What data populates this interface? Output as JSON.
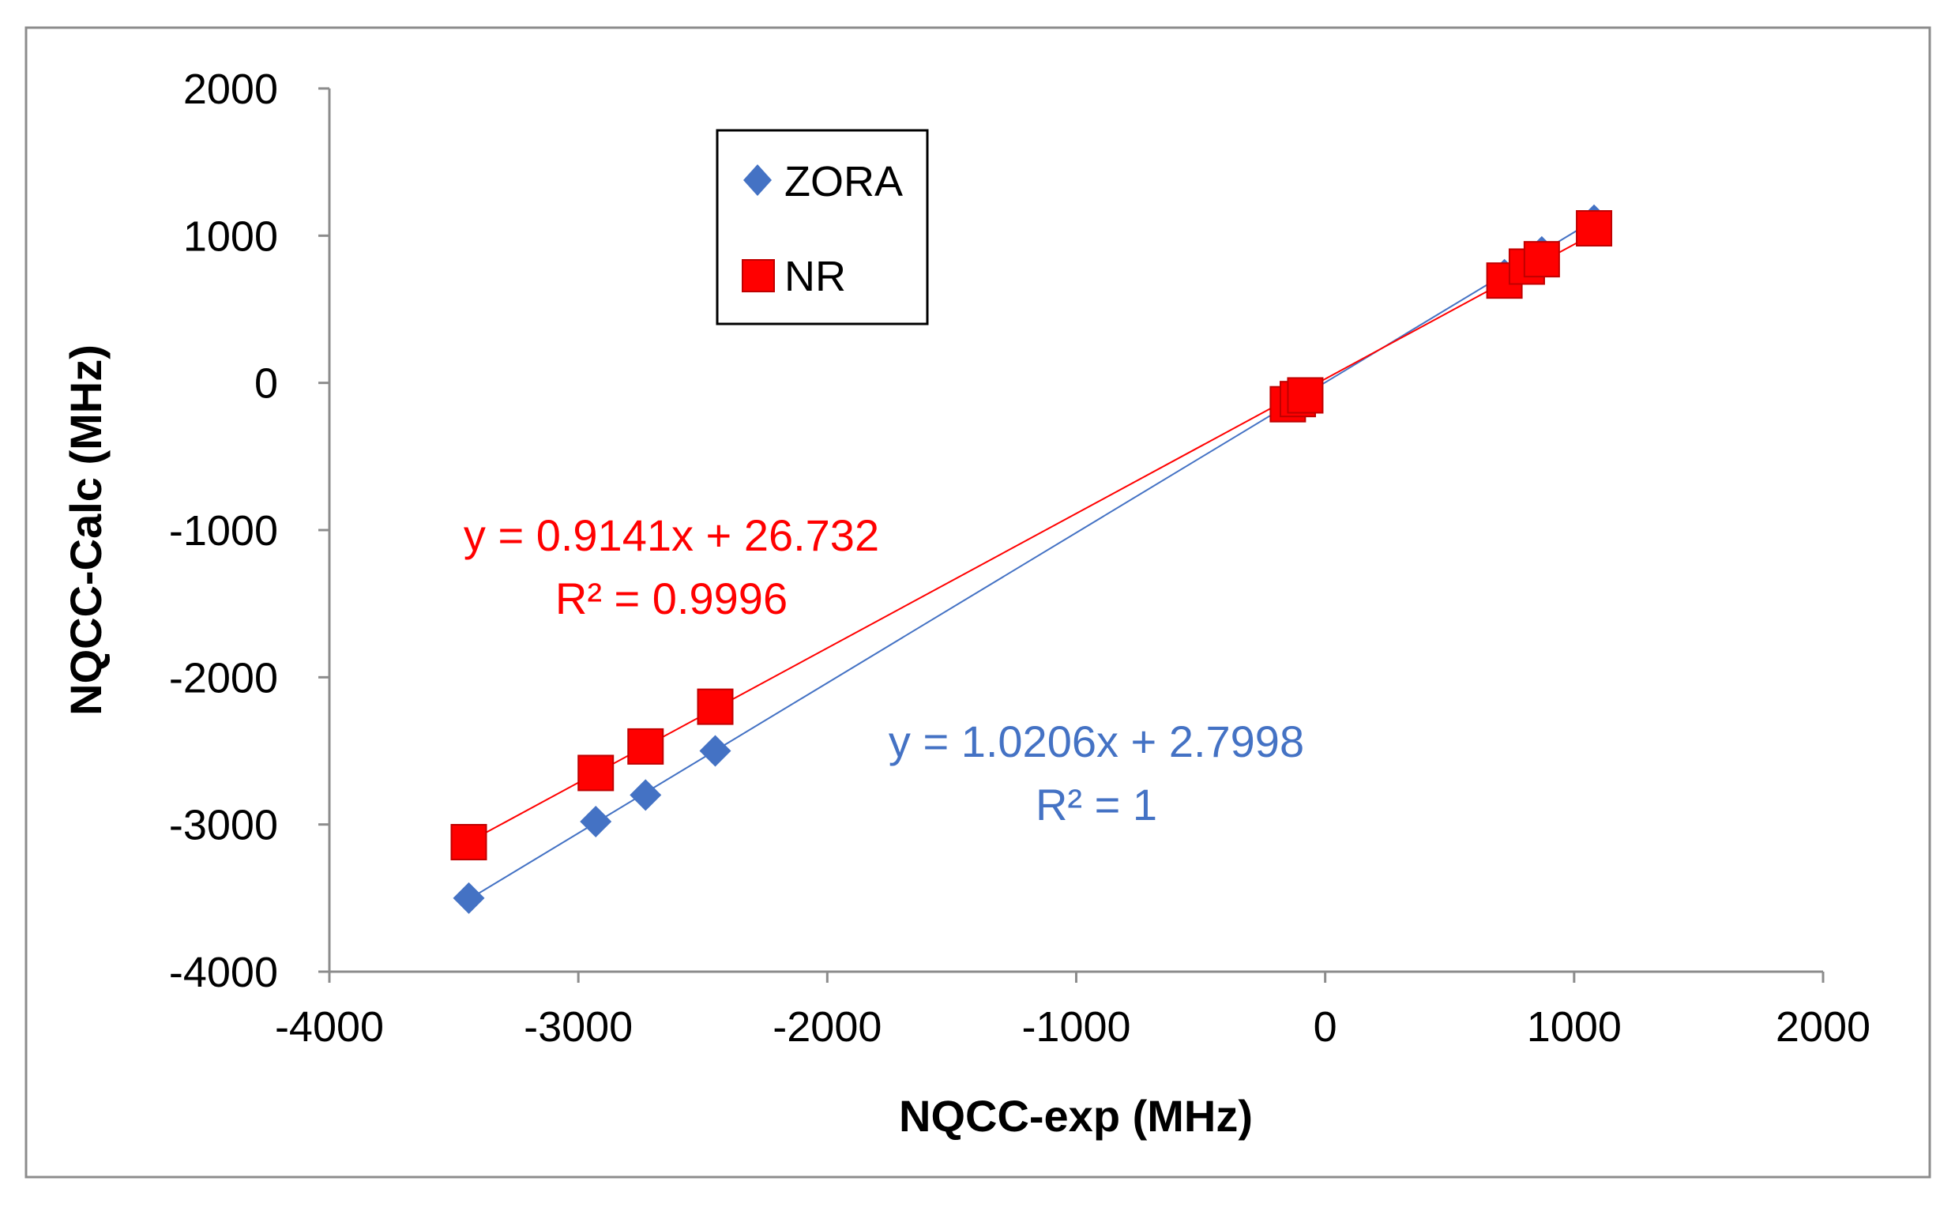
{
  "chart_data": {
    "type": "scatter",
    "xlabel": "NQCC-exp (MHz)",
    "ylabel": "NQCC-Calc (MHz)",
    "xlim": [
      -4000,
      2000
    ],
    "ylim": [
      -4000,
      2000
    ],
    "x_ticks": [
      -4000,
      -3000,
      -2000,
      -1000,
      0,
      1000,
      2000
    ],
    "y_ticks": [
      -4000,
      -3000,
      -2000,
      -1000,
      0,
      1000,
      2000
    ],
    "x_tick_labels": [
      "-4000",
      "-3000",
      "-2000",
      "-1000",
      "0",
      "1000",
      "2000"
    ],
    "y_tick_labels": [
      "-4000",
      "-3000",
      "-2000",
      "-1000",
      "0",
      "1000",
      "2000"
    ],
    "grid": false,
    "legend_position": "top-left",
    "series": [
      {
        "name": "ZORA",
        "marker": "diamond",
        "color": "#4472C4",
        "x": [
          -3440,
          -2930,
          -2730,
          -2450,
          -150,
          -110,
          -80,
          720,
          810,
          870,
          1080
        ],
        "y": [
          -3500,
          -2980,
          -2800,
          -2500,
          -150,
          -110,
          -80,
          735,
          825,
          890,
          1105
        ],
        "trendline": {
          "slope": 1.0206,
          "intercept": 2.7998,
          "x_range": [
            -3440,
            1090
          ]
        },
        "equation_label": "y = 1.0206x + 2.7998",
        "r2_label": "R² = 1"
      },
      {
        "name": "NR",
        "marker": "square",
        "color": "#FF0000",
        "x": [
          -3440,
          -2930,
          -2730,
          -2450,
          -150,
          -110,
          -80,
          720,
          810,
          870,
          1080
        ],
        "y": [
          -3120,
          -2650,
          -2470,
          -2200,
          -145,
          -110,
          -85,
          695,
          790,
          840,
          1050
        ],
        "trendline": {
          "slope": 0.9141,
          "intercept": 26.732,
          "x_range": [
            -3440,
            1090
          ]
        },
        "equation_label": "y = 0.9141x + 26.732",
        "r2_label": "R² = 0.9996"
      }
    ]
  }
}
